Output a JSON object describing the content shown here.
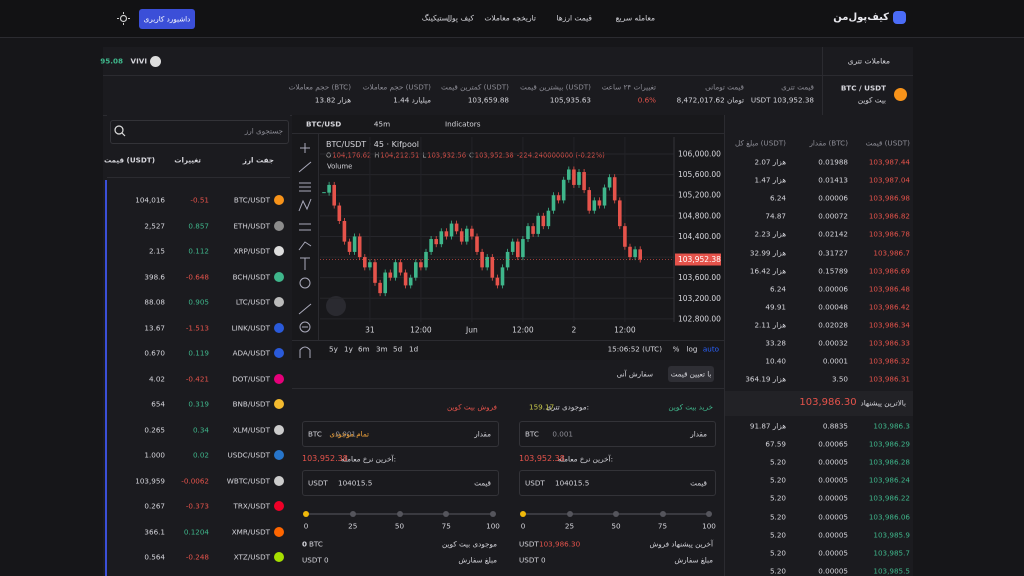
{
  "nav": {
    "logo": "کیف‌پول‌من",
    "links": [
      "معامله سریع",
      "قیمت ارزها",
      "تاریخچه معاملات",
      "کیف پول",
      "استیکینگ"
    ],
    "dashboard": "داشبورد کاربری"
  },
  "ticker": {
    "left_value": "95.08",
    "left_symbol": "VIVI",
    "market": "معاملات تتری"
  },
  "stats": {
    "pair": "BTC / USDT",
    "name": "بیت کوین",
    "items": [
      {
        "label": "قیمت تتری",
        "value": "USDT 103,952.38"
      },
      {
        "label": "قیمت تومانی",
        "value": "8,472,017.62 تومان"
      },
      {
        "label": "تغییرات ۲۴ ساعت",
        "value": "0.6%"
      },
      {
        "label": "بیشترین قیمت (USDT)",
        "value": "105,935.63"
      },
      {
        "label": "کمترین قیمت (USDT)",
        "value": "103,659.88"
      },
      {
        "label": "حجم معاملات (USDT)",
        "value": "1.44 میلیارد"
      },
      {
        "label": "حجم معاملات (BTC)",
        "value": "13.82 هزار"
      }
    ]
  },
  "markets": {
    "search": "جستجوی ارز",
    "headers": [
      "جفت ارز",
      "تغییرات",
      "قیمت (USDT)"
    ],
    "rows": [
      [
        "BTC/USDT",
        "-0.51",
        "104,016"
      ],
      [
        "ETH/USDT",
        "0.857",
        "2,527"
      ],
      [
        "XRP/USDT",
        "0.112",
        "2.15"
      ],
      [
        "BCH/USDT",
        "-0.648",
        "398.6"
      ],
      [
        "LTC/USDT",
        "0.905",
        "88.08"
      ],
      [
        "LINK/USDT",
        "-1.513",
        "13.67"
      ],
      [
        "ADA/USDT",
        "0.119",
        "0.670"
      ],
      [
        "DOT/USDT",
        "-0.421",
        "4.02"
      ],
      [
        "BNB/USDT",
        "0.319",
        "654"
      ],
      [
        "XLM/USDT",
        "0.34",
        "0.265"
      ],
      [
        "USDC/USDT",
        "0.02",
        "1.000"
      ],
      [
        "WBTC/USDT",
        "-0.0062",
        "103,959"
      ],
      [
        "TRX/USDT",
        "-0.373",
        "0.267"
      ],
      [
        "XMR/USDT",
        "0.1204",
        "366.1"
      ],
      [
        "XTZ/USDT",
        "-0.248",
        "0.564"
      ]
    ]
  },
  "chart_toolbar": {
    "symbol": "BTC/USD",
    "interval": "45m",
    "indicators": "Indicators",
    "ranges": [
      "5y",
      "1y",
      "6m",
      "3m",
      "5d",
      "1d"
    ],
    "time": "15:06:52 (UTC)",
    "percent": "%",
    "log": "log",
    "auto": "auto"
  },
  "chart_data": {
    "type": "candlestick",
    "title": "BTC/USDT · 45 · Kifpool",
    "ohlc": [
      {
        "k": "O",
        "v": "104,176.62"
      },
      {
        "k": "H",
        "v": "104,212.51"
      },
      {
        "k": "L",
        "v": "103,932.56"
      },
      {
        "k": "C",
        "v": "103,952.38"
      }
    ],
    "change": "-224.240000000 (-0.22%)",
    "volume_label": "Volume",
    "categories": [
      null,
      null,
      null,
      null,
      null,
      null,
      null,
      null,
      null,
      "31",
      null,
      null,
      null,
      null,
      null,
      null,
      null,
      null,
      null,
      "12:00",
      null,
      null,
      null,
      null,
      null,
      null,
      null,
      null,
      null,
      "Jun",
      null,
      null,
      null,
      null,
      null,
      null,
      null,
      null,
      null,
      "12:00",
      null,
      null,
      null,
      null,
      null,
      null,
      null,
      null,
      null,
      "2",
      null,
      null,
      null,
      null,
      null,
      null,
      null,
      null,
      null,
      "12:00",
      null,
      null,
      null
    ],
    "values": [
      105250,
      105400,
      105000,
      104700,
      104300,
      104100,
      104400,
      104000,
      103800,
      103900,
      103500,
      103300,
      103700,
      103600,
      103900,
      103700,
      103450,
      103600,
      103900,
      103800,
      104100,
      104350,
      104250,
      104500,
      104400,
      104650,
      104500,
      104300,
      104550,
      104400,
      104100,
      103800,
      104000,
      103600,
      103450,
      103800,
      104100,
      104300,
      104000,
      104350,
      104600,
      104450,
      104800,
      104600,
      104900,
      105200,
      105100,
      105500,
      105700,
      105400,
      105650,
      105300,
      104900,
      105100,
      105000,
      105350,
      105550,
      105100,
      104600,
      104200,
      104000,
      104150,
      103952.38
    ],
    "last_label": "103,952.38",
    "up_color": "#3fb68b",
    "down_color": "#e5534b",
    "ylim": [
      102740,
      106330
    ],
    "yticks": [
      {
        "value": 106000,
        "label": "106,000.00"
      },
      {
        "value": 105600,
        "label": "105,600.00"
      },
      {
        "value": 105200,
        "label": "105,200.00"
      },
      {
        "value": 104800,
        "label": "104,800.00"
      },
      {
        "value": 104400,
        "label": "104,400.00"
      },
      {
        "value": 104000,
        "label": "104,000.00"
      },
      {
        "value": 103600,
        "label": "103,600.00"
      },
      {
        "value": 103200,
        "label": "103,200.00"
      },
      {
        "value": 102800,
        "label": "102,800.00"
      }
    ],
    "grid": true
  },
  "order_form": {
    "tabs": [
      "با تعیین قیمت",
      "سفارش آنی"
    ],
    "buy": {
      "title": "خرید بیت کوین",
      "balance_label": "موجودی تتری:",
      "balance": "159.17",
      "amount_label": "مقدار",
      "amount": "0.001",
      "amount_unit": "BTC",
      "last_rate_label": "آخرین نرخ معامله:",
      "last_rate": "103,952.38",
      "price_label": "قیمت",
      "price": "104015.5",
      "price_unit": "USDT",
      "offer_label": "آخرین پیشنهاد فروش",
      "offer_unit": "USDT",
      "offer": "103,986.30",
      "total_label": "مبلغ سفارش",
      "total": "USDT 0"
    },
    "sell": {
      "title": "فروش بیت کوین",
      "amount_label": "مقدار",
      "all_balance": "تمام موجودی",
      "amount": "0.001",
      "amount_unit": "BTC",
      "last_rate_label": "آخرین نرخ معامله:",
      "last_rate": "103,952.38",
      "price_label": "قیمت",
      "price": "104015.5",
      "price_unit": "USDT",
      "balance_label": "موجودی بیت کوین",
      "balance_value": "0",
      "balance_unit": "BTC",
      "total_label": "مبلغ سفارش",
      "total": "USDT 0"
    },
    "slider": [
      "0",
      "25",
      "50",
      "75",
      "100"
    ]
  },
  "order_book": {
    "headers": [
      "قیمت (USDT)",
      "مقدار (BTC)",
      "مبلغ کل (USDT)"
    ],
    "asks": [
      [
        "103,987.44",
        "0.01988",
        "2.07 هزار"
      ],
      [
        "103,987.04",
        "0.01413",
        "1.47 هزار"
      ],
      [
        "103,986.98",
        "0.00006",
        "6.24"
      ],
      [
        "103,986.82",
        "0.00072",
        "74.87"
      ],
      [
        "103,986.78",
        "0.02142",
        "2.23 هزار"
      ],
      [
        "103,986.7",
        "0.31727",
        "32.99 هزار"
      ],
      [
        "103,986.69",
        "0.15789",
        "16.42 هزار"
      ],
      [
        "103,986.48",
        "0.00006",
        "6.24"
      ],
      [
        "103,986.42",
        "0.00048",
        "49.91"
      ],
      [
        "103,986.34",
        "0.02028",
        "2.11 هزار"
      ],
      [
        "103,986.33",
        "0.00032",
        "33.28"
      ],
      [
        "103,986.32",
        "0.0001",
        "10.40"
      ],
      [
        "103,986.31",
        "3.50",
        "364.19 هزار"
      ]
    ],
    "best_bid_label": "بالاترین پیشنهاد",
    "best_bid": "103,986.30",
    "bids": [
      [
        "103,986.3",
        "0.8835",
        "91.87 هزار"
      ],
      [
        "103,986.29",
        "0.00065",
        "67.59"
      ],
      [
        "103,986.28",
        "0.00005",
        "5.20"
      ],
      [
        "103,986.24",
        "0.00005",
        "5.20"
      ],
      [
        "103,986.22",
        "0.00005",
        "5.20"
      ],
      [
        "103,986.06",
        "0.00005",
        "5.20"
      ],
      [
        "103,985.9",
        "0.00005",
        "5.20"
      ],
      [
        "103,985.7",
        "0.00005",
        "5.20"
      ],
      [
        "103,985.5",
        "0.00005",
        "5.20"
      ],
      [
        "103,985.4",
        "0.00005",
        "5.20"
      ]
    ]
  }
}
